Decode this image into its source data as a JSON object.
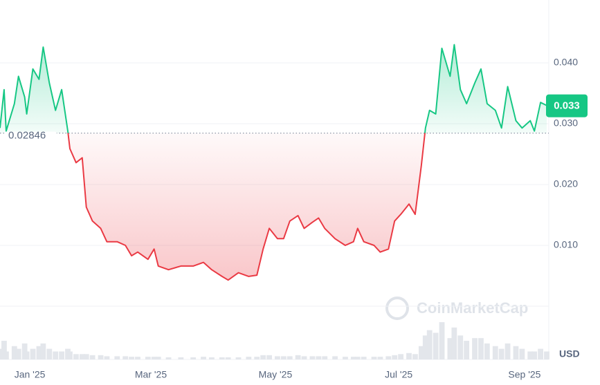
{
  "chart_data": {
    "type": "line",
    "x": [
      0,
      2,
      3,
      7,
      9,
      12,
      13,
      16,
      19,
      21,
      24,
      27,
      30,
      33,
      34,
      37,
      40,
      42,
      45,
      49,
      52,
      57,
      61,
      64,
      67,
      72,
      75,
      77,
      82,
      88,
      94,
      99,
      103,
      108,
      111,
      116,
      121,
      125,
      128,
      131,
      135,
      138,
      141,
      145,
      148,
      152,
      155,
      158,
      163,
      168,
      172,
      174,
      177,
      182,
      185,
      189,
      192,
      195,
      199,
      202,
      205,
      207,
      209,
      212,
      215,
      219,
      221,
      224,
      227,
      231,
      234,
      237,
      241,
      244,
      247,
      251,
      254,
      258,
      260,
      263,
      266
    ],
    "values": [
      0.0293,
      0.0356,
      0.0288,
      0.0333,
      0.0378,
      0.0344,
      0.0316,
      0.039,
      0.0373,
      0.0426,
      0.0367,
      0.0322,
      0.0356,
      0.0288,
      0.0259,
      0.0236,
      0.0244,
      0.0163,
      0.014,
      0.0128,
      0.0106,
      0.0106,
      0.01,
      0.0083,
      0.0089,
      0.0077,
      0.0094,
      0.0066,
      0.006,
      0.0066,
      0.0066,
      0.0072,
      0.006,
      0.0049,
      0.0043,
      0.0055,
      0.0049,
      0.0051,
      0.0094,
      0.0128,
      0.0111,
      0.0111,
      0.014,
      0.0149,
      0.0128,
      0.0138,
      0.0145,
      0.0128,
      0.0111,
      0.01,
      0.0106,
      0.0128,
      0.0106,
      0.01,
      0.0089,
      0.0094,
      0.014,
      0.0151,
      0.0168,
      0.0151,
      0.0231,
      0.0293,
      0.0322,
      0.0316,
      0.0424,
      0.0378,
      0.043,
      0.0356,
      0.0333,
      0.0367,
      0.039,
      0.0333,
      0.0322,
      0.0293,
      0.0361,
      0.0305,
      0.0293,
      0.0305,
      0.0288,
      0.0335,
      0.033
    ],
    "volume": [
      20,
      35,
      15,
      25,
      20,
      30,
      15,
      20,
      25,
      30,
      20,
      15,
      15,
      20,
      15,
      10,
      10,
      10,
      8,
      8,
      6,
      6,
      6,
      5,
      5,
      5,
      5,
      5,
      4,
      4,
      4,
      5,
      4,
      4,
      4,
      4,
      5,
      5,
      8,
      8,
      6,
      6,
      6,
      8,
      6,
      6,
      6,
      6,
      6,
      5,
      5,
      5,
      5,
      5,
      5,
      6,
      8,
      10,
      12,
      10,
      25,
      45,
      55,
      50,
      70,
      40,
      60,
      45,
      35,
      40,
      40,
      30,
      25,
      20,
      30,
      25,
      20,
      15,
      15,
      20,
      15
    ],
    "volume_lim": [
      0,
      100
    ],
    "up_color": "#16c784",
    "down_color": "#ea3943",
    "reference": 0.02846,
    "current_price": 0.033,
    "xlim": [
      0,
      266
    ],
    "xticks": [
      {
        "value": 14.5,
        "label": "Jan '25"
      },
      {
        "value": 73.4,
        "label": "Mar '25"
      },
      {
        "value": 134,
        "label": "May '25"
      },
      {
        "value": 194,
        "label": "Jul '25"
      },
      {
        "value": 255.2,
        "label": "Sep '25"
      }
    ],
    "ylim": [
      0,
      0.0495
    ],
    "yticks": [
      {
        "value": 0.01,
        "label": "0.010"
      },
      {
        "value": 0.02,
        "label": "0.020"
      },
      {
        "value": 0.03,
        "label": "0.030"
      },
      {
        "value": 0.04,
        "label": "0.040"
      }
    ],
    "grid": true,
    "currency": "USD",
    "watermark": "CoinMarketCap"
  }
}
